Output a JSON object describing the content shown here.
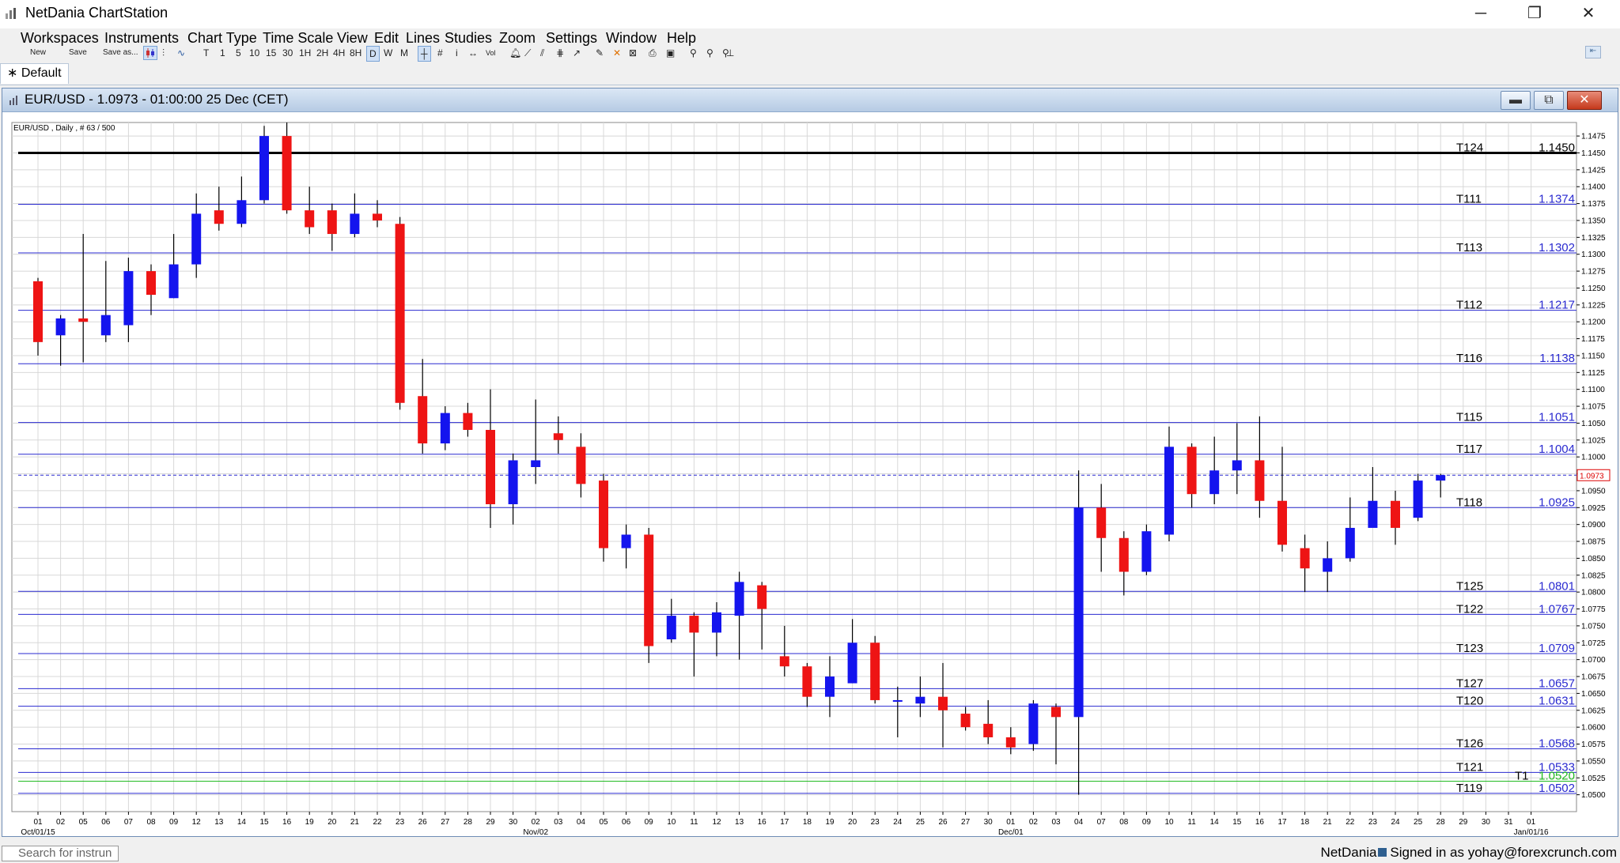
{
  "app": {
    "title": "NetDania ChartStation",
    "window_buttons": {
      "minimize": "─",
      "restore": "❐",
      "close": "✕"
    }
  },
  "menu": [
    "Workspaces",
    "Instruments",
    "Chart Type",
    "Time Scale",
    "View",
    "Edit",
    "Lines",
    "Studies",
    "Zoom",
    "Settings",
    "Window",
    "Help"
  ],
  "toolbar": {
    "new_label": "New",
    "save_label": "Save",
    "save_as_label": "Save as...",
    "timescales": [
      "T",
      "1",
      "5",
      "10",
      "15",
      "30",
      "1H",
      "2H",
      "4H",
      "8H",
      "D",
      "W",
      "M"
    ],
    "selected_timescale": "D"
  },
  "tabs": [
    {
      "label": "Default"
    }
  ],
  "chart_window": {
    "title": "EUR/USD - 1.0973 - 01:00:00  25 Dec (CET)",
    "buttons": {
      "minimize": "▬",
      "restore": "⧉",
      "close": "✕"
    }
  },
  "status": {
    "search_placeholder": "Search for instrun",
    "brand": "NetDania",
    "signed_in": "Signed in as yohay@forexcrunch.com"
  },
  "chart_data": {
    "type": "candlestick",
    "info_label": "EUR/USD , Daily , # 63 / 500",
    "ylim": [
      1.0475,
      1.1495
    ],
    "y_ticks": [
      1.05,
      1.0525,
      1.055,
      1.0575,
      1.06,
      1.0625,
      1.065,
      1.0675,
      1.07,
      1.0725,
      1.075,
      1.0775,
      1.08,
      1.0825,
      1.085,
      1.0875,
      1.09,
      1.0925,
      1.095,
      1.0975,
      1.1,
      1.1025,
      1.105,
      1.1075,
      1.11,
      1.1125,
      1.115,
      1.1175,
      1.12,
      1.1225,
      1.125,
      1.1275,
      1.13,
      1.1325,
      1.135,
      1.1375,
      1.14,
      1.1425,
      1.145,
      1.1475
    ],
    "x_labels": [
      "01",
      "02",
      "05",
      "06",
      "07",
      "08",
      "09",
      "12",
      "13",
      "14",
      "15",
      "16",
      "19",
      "20",
      "21",
      "22",
      "23",
      "26",
      "27",
      "28",
      "29",
      "30",
      "02",
      "03",
      "04",
      "05",
      "06",
      "09",
      "10",
      "11",
      "12",
      "13",
      "16",
      "17",
      "18",
      "19",
      "20",
      "23",
      "24",
      "25",
      "26",
      "27",
      "30",
      "01",
      "02",
      "03",
      "04",
      "07",
      "08",
      "09",
      "10",
      "11",
      "14",
      "15",
      "16",
      "17",
      "18",
      "21",
      "22",
      "23",
      "24",
      "25",
      "28",
      "29",
      "30",
      "31",
      "01"
    ],
    "period_labels": [
      {
        "index": 0,
        "text": "Oct/01/15"
      },
      {
        "index": 22,
        "text": "Nov/02"
      },
      {
        "index": 43,
        "text": "Dec/01"
      },
      {
        "index": 66,
        "text": "Jan/01/16"
      }
    ],
    "candles": [
      [
        1.126,
        1.1265,
        1.115,
        1.117
      ],
      [
        1.118,
        1.121,
        1.1135,
        1.1205
      ],
      [
        1.1205,
        1.133,
        1.114,
        1.12
      ],
      [
        1.118,
        1.129,
        1.117,
        1.121
      ],
      [
        1.1195,
        1.1295,
        1.117,
        1.1275
      ],
      [
        1.1275,
        1.1285,
        1.121,
        1.124
      ],
      [
        1.1235,
        1.133,
        1.1235,
        1.1285
      ],
      [
        1.1285,
        1.139,
        1.1265,
        1.136
      ],
      [
        1.1365,
        1.14,
        1.1335,
        1.1345
      ],
      [
        1.1345,
        1.1415,
        1.134,
        1.138
      ],
      [
        1.138,
        1.149,
        1.1375,
        1.1475
      ],
      [
        1.1475,
        1.1495,
        1.136,
        1.1365
      ],
      [
        1.1365,
        1.14,
        1.133,
        1.134
      ],
      [
        1.1365,
        1.1375,
        1.1305,
        1.133
      ],
      [
        1.133,
        1.139,
        1.1325,
        1.136
      ],
      [
        1.136,
        1.138,
        1.134,
        1.135
      ],
      [
        1.1345,
        1.1355,
        1.107,
        1.108
      ],
      [
        1.109,
        1.1145,
        1.1005,
        1.102
      ],
      [
        1.102,
        1.1075,
        1.101,
        1.1065
      ],
      [
        1.1065,
        1.108,
        1.103,
        1.104
      ],
      [
        1.104,
        1.11,
        1.0895,
        1.093
      ],
      [
        1.093,
        1.1005,
        1.09,
        1.0995
      ],
      [
        1.0985,
        1.1085,
        1.096,
        1.0995
      ],
      [
        1.1035,
        1.106,
        1.1005,
        1.1025
      ],
      [
        1.1015,
        1.1035,
        1.094,
        1.096
      ],
      [
        1.0965,
        1.0975,
        1.0845,
        1.0865
      ],
      [
        1.0865,
        1.09,
        1.0835,
        1.0885
      ],
      [
        1.0885,
        1.0895,
        1.0695,
        1.072
      ],
      [
        1.073,
        1.079,
        1.0725,
        1.0765
      ],
      [
        1.0765,
        1.077,
        1.0675,
        1.074
      ],
      [
        1.074,
        1.0785,
        1.0705,
        1.077
      ],
      [
        1.0765,
        1.083,
        1.07,
        1.0815
      ],
      [
        1.081,
        1.0815,
        1.0715,
        1.0775
      ],
      [
        1.0705,
        1.075,
        1.0675,
        1.069
      ],
      [
        1.069,
        1.0695,
        1.063,
        1.0645
      ],
      [
        1.0645,
        1.0705,
        1.0615,
        1.0675
      ],
      [
        1.0665,
        1.076,
        1.0665,
        1.0725
      ],
      [
        1.0725,
        1.0735,
        1.0635,
        1.064
      ],
      [
        1.064,
        1.066,
        1.0585,
        1.064
      ],
      [
        1.0635,
        1.0675,
        1.0615,
        1.0645
      ],
      [
        1.0645,
        1.0695,
        1.057,
        1.0625
      ],
      [
        1.062,
        1.063,
        1.0595,
        1.06
      ],
      [
        1.0605,
        1.064,
        1.0575,
        1.0585
      ],
      [
        1.0585,
        1.06,
        1.056,
        1.057
      ],
      [
        1.0575,
        1.064,
        1.0565,
        1.0635
      ],
      [
        1.063,
        1.0635,
        1.0545,
        1.0615
      ],
      [
        1.0615,
        1.098,
        1.05,
        1.0925
      ],
      [
        1.0925,
        1.096,
        1.083,
        1.088
      ],
      [
        1.088,
        1.089,
        1.0795,
        1.083
      ],
      [
        1.083,
        1.09,
        1.0825,
        1.089
      ],
      [
        1.0885,
        1.1045,
        1.0875,
        1.1015
      ],
      [
        1.1015,
        1.102,
        1.0925,
        1.0945
      ],
      [
        1.0945,
        1.103,
        1.093,
        1.098
      ],
      [
        1.098,
        1.105,
        1.0945,
        1.0995
      ],
      [
        1.0995,
        1.106,
        1.091,
        1.0935
      ],
      [
        1.0935,
        1.1015,
        1.086,
        1.087
      ],
      [
        1.0865,
        1.0885,
        1.08,
        1.0835
      ],
      [
        1.083,
        1.0875,
        1.08,
        1.085
      ],
      [
        1.085,
        1.094,
        1.0845,
        1.0895
      ],
      [
        1.0895,
        1.0985,
        1.09,
        1.0935
      ],
      [
        1.0935,
        1.095,
        1.087,
        1.0895
      ],
      [
        1.091,
        1.0975,
        1.0905,
        1.0965
      ],
      [
        1.0965,
        1.0975,
        1.094,
        1.0973
      ]
    ],
    "levels": [
      {
        "name": "T124",
        "price": 1.145,
        "label": "1.1450",
        "color": "#000000",
        "width": 3
      },
      {
        "name": "T111",
        "price": 1.1374,
        "label": "1.1374",
        "color": "#2a2ad0",
        "width": 1
      },
      {
        "name": "T113",
        "price": 1.1302,
        "label": "1.1302",
        "color": "#2a2ad0",
        "width": 1
      },
      {
        "name": "T112",
        "price": 1.1217,
        "label": "1.1217",
        "color": "#2a2ad0",
        "width": 1
      },
      {
        "name": "T116",
        "price": 1.1138,
        "label": "1.1138",
        "color": "#2a2ad0",
        "width": 1
      },
      {
        "name": "T115",
        "price": 1.1051,
        "label": "1.1051",
        "color": "#2a2ad0",
        "width": 1
      },
      {
        "name": "T117",
        "price": 1.1004,
        "label": "1.1004",
        "color": "#2a2ad0",
        "width": 1
      },
      {
        "name": "T118",
        "price": 1.0925,
        "label": "1.0925",
        "color": "#2a2ad0",
        "width": 1
      },
      {
        "name": "T125",
        "price": 1.0801,
        "label": "1.0801",
        "color": "#2a2ad0",
        "width": 1
      },
      {
        "name": "T122",
        "price": 1.0767,
        "label": "1.0767",
        "color": "#2a2ad0",
        "width": 1
      },
      {
        "name": "T123",
        "price": 1.0709,
        "label": "1.0709",
        "color": "#2a2ad0",
        "width": 1
      },
      {
        "name": "T127",
        "price": 1.0657,
        "label": "1.0657",
        "color": "#2a2ad0",
        "width": 1
      },
      {
        "name": "T120",
        "price": 1.0631,
        "label": "1.0631",
        "color": "#2a2ad0",
        "width": 1
      },
      {
        "name": "T126",
        "price": 1.0568,
        "label": "1.0568",
        "color": "#2a2ad0",
        "width": 1
      },
      {
        "name": "T121",
        "price": 1.0533,
        "label": "1.0533",
        "color": "#2a2ad0",
        "width": 1
      },
      {
        "name": "T1",
        "price": 1.052,
        "label": "1.0520",
        "color": "#22bb22",
        "width": 1
      },
      {
        "name": "T119",
        "price": 1.0502,
        "label": "1.0502",
        "color": "#2a2ad0",
        "width": 1
      }
    ],
    "current_price": {
      "value": 1.0973,
      "label": "1.0973"
    },
    "colors": {
      "up": "#1414ee",
      "down": "#ee1414",
      "grid": "#d8d8d8",
      "current": "#2a2ad0"
    }
  }
}
